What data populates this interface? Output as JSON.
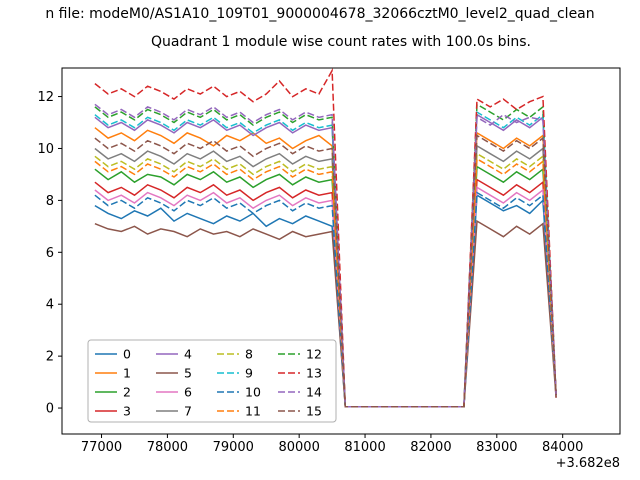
{
  "figure": {
    "suptitle": "n file: modeM0/AS1A10_109T01_9000004678_32066cztM0_level2_quad_clean",
    "title": "Quadrant 1 module wise count rates with 100.0s bins."
  },
  "chart_data": {
    "type": "line",
    "title": "Quadrant 1 module wise count rates with 100.0s bins.",
    "suptitle": "n file: modeM0/AS1A10_109T01_9000004678_32066cztM0_level2_quad_clean",
    "xlabel": "",
    "ylabel": "",
    "x_offset_label": "+3.682e8",
    "xlim": [
      76400,
      84870
    ],
    "ylim": [
      -1.0,
      13.1
    ],
    "xticks": [
      77000,
      78000,
      79000,
      80000,
      81000,
      82000,
      83000,
      84000
    ],
    "xtick_labels": [
      "77000",
      "78000",
      "79000",
      "80000",
      "81000",
      "82000",
      "83000",
      "84000"
    ],
    "yticks": [
      0,
      2,
      4,
      6,
      8,
      10,
      12
    ],
    "ytick_labels": [
      "0",
      "2",
      "4",
      "6",
      "8",
      "10",
      "12"
    ],
    "grid": false,
    "legend_position": "lower left",
    "legend_columns": 4,
    "x": [
      76900,
      77100,
      77300,
      77500,
      77700,
      77900,
      78100,
      78300,
      78500,
      78700,
      78900,
      79100,
      79300,
      79500,
      79700,
      79900,
      80100,
      80300,
      80500,
      80700,
      80900,
      81100,
      81300,
      81500,
      81700,
      81900,
      82100,
      82300,
      82500,
      82700,
      82900,
      83100,
      83300,
      83500,
      83700,
      83900
    ],
    "series": [
      {
        "name": "0",
        "color": "#1f77b4",
        "dash": false,
        "values": [
          7.8,
          7.5,
          7.3,
          7.6,
          7.4,
          7.7,
          7.2,
          7.5,
          7.3,
          7.1,
          7.4,
          7.2,
          7.5,
          7.0,
          7.3,
          7.1,
          7.4,
          7.2,
          7.0,
          0.05,
          0.05,
          0.05,
          0.05,
          0.05,
          0.05,
          0.05,
          0.05,
          0.05,
          0.05,
          8.2,
          7.9,
          7.6,
          7.8,
          7.5,
          8.0,
          0.5
        ]
      },
      {
        "name": "1",
        "color": "#ff7f0e",
        "dash": false,
        "values": [
          10.8,
          10.4,
          10.6,
          10.3,
          10.7,
          10.5,
          10.2,
          10.6,
          10.4,
          10.1,
          10.5,
          10.3,
          10.6,
          10.2,
          10.4,
          10.0,
          10.3,
          10.5,
          10.1,
          0.05,
          0.05,
          0.05,
          0.05,
          0.05,
          0.05,
          0.05,
          0.05,
          0.05,
          0.05,
          10.6,
          10.3,
          10.0,
          10.4,
          10.1,
          10.5,
          0.5
        ]
      },
      {
        "name": "2",
        "color": "#2ca02c",
        "dash": false,
        "values": [
          9.2,
          8.8,
          9.1,
          8.7,
          9.0,
          8.9,
          8.6,
          9.0,
          8.8,
          9.1,
          8.7,
          8.9,
          8.5,
          8.8,
          9.0,
          8.6,
          8.9,
          8.7,
          8.8,
          0.05,
          0.05,
          0.05,
          0.05,
          0.05,
          0.05,
          0.05,
          0.05,
          0.05,
          0.05,
          9.3,
          9.0,
          8.7,
          9.1,
          8.8,
          9.2,
          0.5
        ]
      },
      {
        "name": "3",
        "color": "#d62728",
        "dash": false,
        "values": [
          8.7,
          8.3,
          8.5,
          8.2,
          8.6,
          8.4,
          8.1,
          8.5,
          8.3,
          8.6,
          8.2,
          8.4,
          8.0,
          8.3,
          8.5,
          8.1,
          8.4,
          8.2,
          8.3,
          0.05,
          0.05,
          0.05,
          0.05,
          0.05,
          0.05,
          0.05,
          0.05,
          0.05,
          0.05,
          8.8,
          8.5,
          8.2,
          8.6,
          8.3,
          8.7,
          0.4
        ]
      },
      {
        "name": "4",
        "color": "#9467bd",
        "dash": false,
        "values": [
          11.2,
          10.8,
          11.0,
          10.7,
          11.1,
          10.9,
          10.6,
          11.0,
          10.8,
          11.1,
          10.7,
          10.9,
          10.5,
          10.8,
          11.0,
          10.6,
          10.9,
          10.7,
          10.8,
          0.05,
          0.05,
          0.05,
          0.05,
          0.05,
          0.05,
          0.05,
          0.05,
          0.05,
          0.05,
          11.3,
          11.0,
          10.7,
          11.1,
          10.8,
          11.2,
          0.5
        ]
      },
      {
        "name": "5",
        "color": "#8c564b",
        "dash": false,
        "values": [
          7.1,
          6.9,
          6.8,
          7.0,
          6.7,
          6.9,
          6.8,
          6.6,
          6.9,
          6.7,
          6.8,
          6.6,
          6.9,
          6.7,
          6.5,
          6.8,
          6.6,
          6.7,
          6.8,
          0.05,
          0.05,
          0.05,
          0.05,
          0.05,
          0.05,
          0.05,
          0.05,
          0.05,
          0.05,
          7.2,
          6.9,
          6.6,
          7.0,
          6.7,
          7.1,
          0.4
        ]
      },
      {
        "name": "6",
        "color": "#e377c2",
        "dash": false,
        "values": [
          8.4,
          8.0,
          8.2,
          7.9,
          8.3,
          8.1,
          7.8,
          8.2,
          8.0,
          8.3,
          7.9,
          8.1,
          7.7,
          8.0,
          8.2,
          7.8,
          8.1,
          7.9,
          8.0,
          0.05,
          0.05,
          0.05,
          0.05,
          0.05,
          0.05,
          0.05,
          0.05,
          0.05,
          0.05,
          8.5,
          8.2,
          7.9,
          8.3,
          8.0,
          8.4,
          0.5
        ]
      },
      {
        "name": "7",
        "color": "#7f7f7f",
        "dash": false,
        "values": [
          10.0,
          9.6,
          9.8,
          9.5,
          9.9,
          9.7,
          9.4,
          9.8,
          9.6,
          9.9,
          9.5,
          9.7,
          9.3,
          9.6,
          9.8,
          9.4,
          9.7,
          9.5,
          9.6,
          0.05,
          0.05,
          0.05,
          0.05,
          0.05,
          0.05,
          0.05,
          0.05,
          0.05,
          0.05,
          10.1,
          9.8,
          9.5,
          9.9,
          9.6,
          10.0,
          0.5
        ]
      },
      {
        "name": "8",
        "color": "#bcbd22",
        "dash": true,
        "values": [
          9.7,
          9.3,
          9.5,
          9.2,
          9.6,
          9.4,
          9.1,
          9.5,
          9.3,
          9.6,
          9.2,
          9.4,
          9.0,
          9.3,
          9.5,
          9.1,
          9.4,
          9.2,
          9.3,
          0.05,
          0.05,
          0.05,
          0.05,
          0.05,
          0.05,
          0.05,
          0.05,
          0.05,
          0.05,
          9.8,
          9.5,
          9.2,
          9.6,
          9.3,
          9.7,
          0.5
        ]
      },
      {
        "name": "9",
        "color": "#17becf",
        "dash": true,
        "values": [
          11.3,
          10.9,
          11.1,
          10.8,
          11.2,
          11.0,
          10.7,
          11.1,
          10.9,
          11.2,
          10.8,
          11.0,
          10.6,
          10.9,
          11.1,
          10.7,
          11.0,
          10.8,
          10.9,
          0.05,
          0.05,
          0.05,
          0.05,
          0.05,
          0.05,
          0.05,
          0.05,
          0.05,
          0.05,
          11.4,
          11.1,
          10.8,
          11.2,
          10.9,
          11.3,
          0.5
        ]
      },
      {
        "name": "10",
        "color": "#1f77b4",
        "dash": true,
        "values": [
          8.2,
          7.8,
          8.0,
          7.7,
          8.1,
          7.9,
          7.6,
          8.0,
          7.8,
          8.1,
          7.7,
          7.9,
          7.5,
          7.8,
          8.0,
          7.6,
          7.9,
          7.7,
          7.8,
          0.05,
          0.05,
          0.05,
          0.05,
          0.05,
          0.05,
          0.05,
          0.05,
          0.05,
          0.05,
          8.3,
          8.0,
          7.7,
          8.1,
          7.8,
          8.2,
          0.5
        ]
      },
      {
        "name": "11",
        "color": "#ff7f0e",
        "dash": true,
        "values": [
          9.5,
          9.1,
          9.3,
          9.0,
          9.4,
          9.2,
          8.9,
          9.3,
          9.1,
          9.4,
          9.0,
          9.2,
          8.8,
          9.1,
          9.3,
          8.9,
          9.2,
          9.0,
          9.1,
          0.05,
          0.05,
          0.05,
          0.05,
          0.05,
          0.05,
          0.05,
          0.05,
          0.05,
          0.05,
          9.6,
          9.3,
          9.0,
          9.4,
          9.1,
          9.5,
          0.5
        ]
      },
      {
        "name": "12",
        "color": "#2ca02c",
        "dash": true,
        "values": [
          11.6,
          11.2,
          11.4,
          11.1,
          11.5,
          11.3,
          11.0,
          11.4,
          11.2,
          11.5,
          11.1,
          11.3,
          10.9,
          11.2,
          11.4,
          11.0,
          11.3,
          11.1,
          11.2,
          0.05,
          0.05,
          0.05,
          0.05,
          0.05,
          0.05,
          0.05,
          0.05,
          0.05,
          0.05,
          11.7,
          11.4,
          11.1,
          11.5,
          11.2,
          11.6,
          0.5
        ]
      },
      {
        "name": "13",
        "color": "#d62728",
        "dash": true,
        "values": [
          12.5,
          12.1,
          12.3,
          12.0,
          12.4,
          12.2,
          11.9,
          12.3,
          12.1,
          12.4,
          12.0,
          12.2,
          11.8,
          12.1,
          12.6,
          12.0,
          12.3,
          12.1,
          13.0,
          0.05,
          0.05,
          0.05,
          0.05,
          0.05,
          0.05,
          0.05,
          0.05,
          0.05,
          0.05,
          11.9,
          11.6,
          11.9,
          11.5,
          11.8,
          12.0,
          0.5
        ]
      },
      {
        "name": "14",
        "color": "#9467bd",
        "dash": true,
        "values": [
          11.7,
          11.3,
          11.5,
          11.2,
          11.6,
          11.4,
          11.1,
          11.5,
          11.3,
          11.6,
          11.2,
          11.4,
          11.0,
          11.3,
          11.5,
          11.1,
          11.4,
          11.2,
          11.3,
          0.05,
          0.05,
          0.05,
          0.05,
          0.05,
          0.05,
          0.05,
          0.05,
          0.05,
          0.05,
          11.2,
          10.9,
          11.3,
          11.0,
          11.2,
          11.1,
          0.5
        ]
      },
      {
        "name": "15",
        "color": "#8c564b",
        "dash": true,
        "values": [
          10.4,
          10.0,
          10.2,
          9.9,
          10.3,
          10.1,
          9.8,
          10.2,
          10.0,
          10.3,
          9.9,
          10.1,
          9.7,
          10.0,
          10.2,
          9.8,
          10.1,
          9.9,
          10.0,
          0.05,
          0.05,
          0.05,
          0.05,
          0.05,
          0.05,
          0.05,
          0.05,
          0.05,
          0.05,
          10.5,
          10.2,
          9.9,
          10.3,
          10.0,
          10.4,
          0.5
        ]
      }
    ]
  }
}
